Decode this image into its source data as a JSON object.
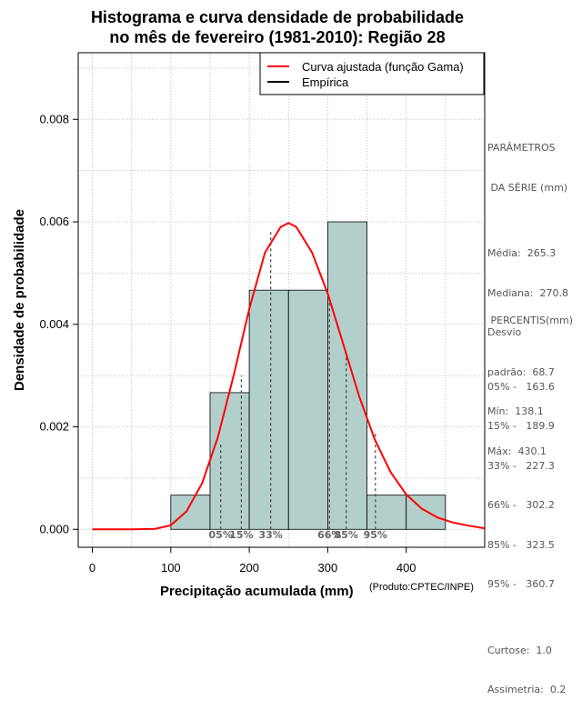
{
  "chart_data": {
    "type": "bar",
    "title": [
      "Histograma e curva densidade de probabilidade",
      "no mês de fevereiro (1981-2010): Região 28"
    ],
    "xlabel": "Precipitação acumulada (mm)",
    "ylabel": "Densidade de probabilidade",
    "credit": "(Produto:CPTEC/INPE)",
    "xlim": [
      -18,
      500
    ],
    "ylim": [
      -0.00035,
      0.0093
    ],
    "x_ticks": [
      0,
      100,
      200,
      300,
      400
    ],
    "y_ticks": [
      0.0,
      0.002,
      0.004,
      0.006,
      0.008
    ],
    "y_tick_labels": [
      "0.000",
      "0.002",
      "0.004",
      "0.006",
      "0.008"
    ],
    "grid": true,
    "legend": {
      "placement": "top-right",
      "entries": [
        {
          "label": "Curva ajustada (função Gama)",
          "color": "#ff0000"
        },
        {
          "label": "Empírica",
          "color": "#000000"
        }
      ]
    },
    "bins": [
      {
        "x0": 100,
        "x1": 150,
        "density": 0.000667
      },
      {
        "x0": 150,
        "x1": 200,
        "density": 0.002667
      },
      {
        "x0": 200,
        "x1": 250,
        "density": 0.004667
      },
      {
        "x0": 250,
        "x1": 300,
        "density": 0.004667
      },
      {
        "x0": 300,
        "x1": 350,
        "density": 0.006
      },
      {
        "x0": 350,
        "x1": 400,
        "density": 0.000667
      },
      {
        "x0": 400,
        "x1": 450,
        "density": 0.000667
      }
    ],
    "bar_color": "#b3cfcc",
    "fitted_curve": {
      "name": "Curva ajustada (função Gama)",
      "color": "#ff0000",
      "x": [
        0,
        50,
        80,
        100,
        120,
        140,
        160,
        180,
        200,
        220,
        240,
        250,
        260,
        280,
        300,
        320,
        340,
        360,
        380,
        400,
        420,
        440,
        460,
        480,
        500
      ],
      "y": [
        0.0,
        0.0,
        1e-05,
        8e-05,
        0.00035,
        0.0009,
        0.0018,
        0.003,
        0.0043,
        0.0054,
        0.0059,
        0.00598,
        0.0059,
        0.0054,
        0.0046,
        0.0036,
        0.0026,
        0.00175,
        0.00112,
        0.00068,
        0.0004,
        0.00023,
        0.00013,
        7e-05,
        2e-05
      ]
    },
    "percentile_lines": [
      {
        "label": "05%",
        "x": 163.6,
        "y": 0.0017
      },
      {
        "label": "15%",
        "x": 189.9,
        "y": 0.003
      },
      {
        "label": "33%",
        "x": 227.3,
        "y": 0.0058
      },
      {
        "label": "66%",
        "x": 302.2,
        "y": 0.0045
      },
      {
        "label": "85%",
        "x": 323.5,
        "y": 0.0035
      },
      {
        "label": "95%",
        "x": 360.7,
        "y": 0.0019
      }
    ]
  },
  "stats_block": [
    "PARÂMETROS",
    " DA SÉRIE (mm)",
    "",
    "Média:  265.3",
    "Mediana:  270.8",
    "Desvio",
    "padrão:  68.7",
    "Mín:  138.1",
    "Máx:  430.1"
  ],
  "percentis_block": [
    " PERCENTIS(mm)",
    "",
    "05% -   163.6",
    "15% -   189.9",
    "33% -   227.3",
    "66% -   302.2",
    "85% -   323.5",
    "95% -   360.7",
    "",
    "Curtose:  1.0",
    "Assimetria:  0.2"
  ]
}
